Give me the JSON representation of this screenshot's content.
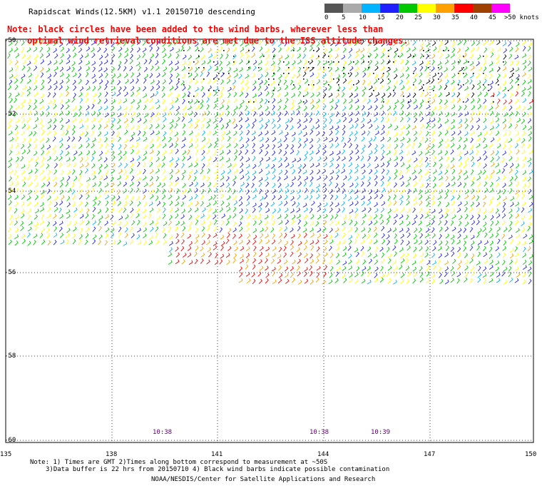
{
  "title": "Rapidscat Winds(12.5KM) v1.1 20150710 descending",
  "note_lines": [
    "Note: black circles have been added to the wind barbs, wherever less than",
    "optimal wind retrieval conditions are met due to the ISS altitude changes."
  ],
  "scale": {
    "labels": [
      "0",
      "5",
      "10",
      "15",
      "20",
      "25",
      "30",
      "35",
      "40",
      "45",
      ">50 knots"
    ],
    "colors": [
      "#555555",
      "#aaaaaa",
      "#00b4ff",
      "#2020ff",
      "#00c800",
      "#ffff00",
      "#ffa000",
      "#ff0000",
      "#a04000",
      "#ff00ff",
      "#400080"
    ]
  },
  "latitude_labels": [
    "-50",
    "-52",
    "-54",
    "-56",
    "-58",
    "-60"
  ],
  "longitude_labels": [
    "135",
    "138",
    "141",
    "144",
    "147",
    "150"
  ],
  "time_labels": [
    "10:38",
    "10:38",
    "10:39"
  ],
  "footer": {
    "line1": "Note: 1) Times are GMT 2)Times along bottom correspond to measurement at ~50S",
    "line2": "3)Data buffer is 22 hrs from 20150710 4) Black wind barbs indicate possible contamination",
    "line3": "NOAA/NESDIS/Center for Satellite Applications and Research"
  }
}
